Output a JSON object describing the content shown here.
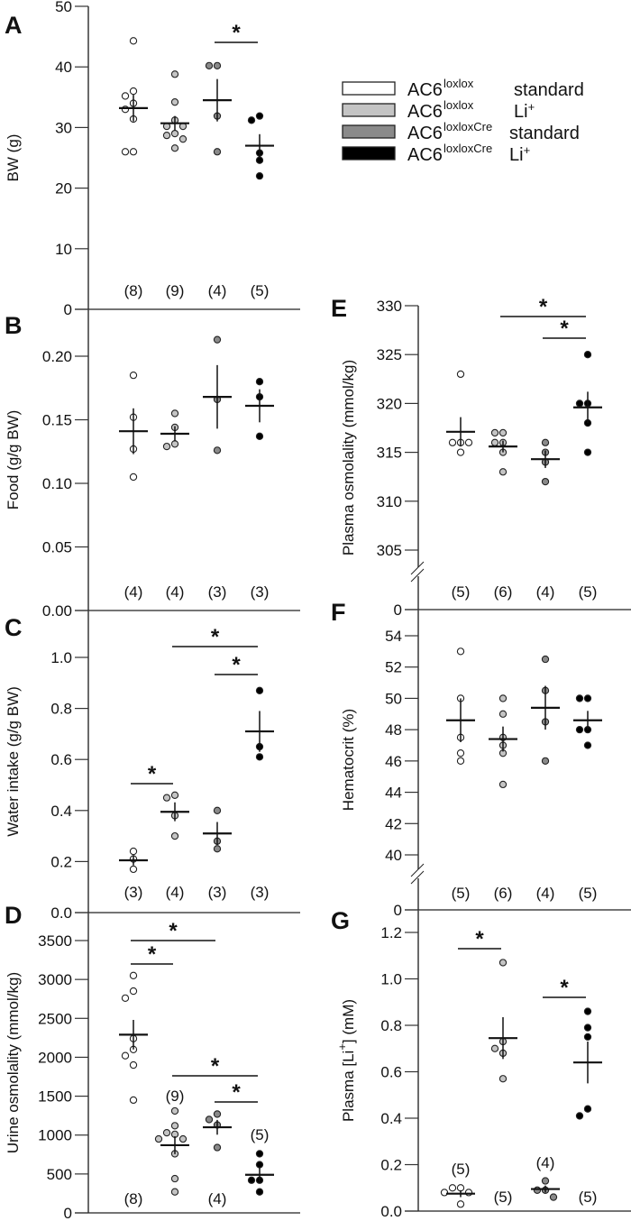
{
  "legend": [
    {
      "genotype": "AC6",
      "sup": "loxlox",
      "treatment": "standard",
      "color": "#ffffff"
    },
    {
      "genotype": "AC6",
      "sup": "loxlox",
      "treatment": "Li",
      "treatment_sup": "+",
      "color": "#c4c4c4"
    },
    {
      "genotype": "AC6",
      "sup": "loxloxCre",
      "treatment": "standard",
      "color": "#8a8a8a"
    },
    {
      "genotype": "AC6",
      "sup": "loxloxCre",
      "treatment": "Li",
      "treatment_sup": "+",
      "color": "#000000"
    }
  ],
  "chart_data": [
    {
      "panel": "A",
      "type": "scatter",
      "ylabel": "BW (g)",
      "yticks": [
        "0",
        "10",
        "20",
        "30",
        "40",
        "50"
      ],
      "ylim": [
        0,
        50
      ],
      "axis_break": false,
      "groups": [
        {
          "n": "(8)",
          "values": [
            44.3,
            36,
            35.2,
            34,
            33,
            31.4,
            26,
            26
          ],
          "mean": 33.2,
          "sem": 2.2
        },
        {
          "n": "(9)",
          "values": [
            38.8,
            34.2,
            31.2,
            30.2,
            30.2,
            29,
            28.7,
            28.1,
            26.6
          ],
          "mean": 30.7,
          "sem": 1.2
        },
        {
          "n": "(4)",
          "values": [
            40.2,
            40.2,
            31.9,
            26
          ],
          "mean": 34.5,
          "sem": 3.5
        },
        {
          "n": "(5)",
          "values": [
            31.9,
            31.2,
            25.8,
            24.6,
            22
          ],
          "mean": 27,
          "sem": 1.9
        }
      ],
      "significance": [
        {
          "from": 3,
          "to": 4,
          "label": "*"
        }
      ]
    },
    {
      "panel": "B",
      "type": "scatter",
      "ylabel": "Food (g/g BW)",
      "yticks": [
        "0.00",
        "0.05",
        "0.10",
        "0.15",
        "0.20"
      ],
      "ylim": [
        0,
        0.22
      ],
      "axis_break": false,
      "groups": [
        {
          "n": "(4)",
          "values": [
            0.185,
            0.152,
            0.127,
            0.105
          ],
          "mean": 0.141,
          "sem": 0.018
        },
        {
          "n": "(4)",
          "values": [
            0.155,
            0.144,
            0.131,
            0.129
          ],
          "mean": 0.139,
          "sem": 0.006
        },
        {
          "n": "(3)",
          "values": [
            0.213,
            0.166,
            0.126
          ],
          "mean": 0.168,
          "sem": 0.025
        },
        {
          "n": "(3)",
          "values": [
            0.18,
            0.168,
            0.137
          ],
          "mean": 0.161,
          "sem": 0.013
        }
      ],
      "significance": []
    },
    {
      "panel": "C",
      "type": "scatter",
      "ylabel": "Water intake (g/g BW)",
      "yticks": [
        "0.0",
        "0.2",
        "0.4",
        "0.6",
        "0.8",
        "1.0"
      ],
      "ylim": [
        0,
        1.1
      ],
      "axis_break": false,
      "groups": [
        {
          "n": "(3)",
          "values": [
            0.24,
            0.21,
            0.17
          ],
          "mean": 0.205,
          "sem": 0.02
        },
        {
          "n": "(4)",
          "values": [
            0.46,
            0.45,
            0.38,
            0.3
          ],
          "mean": 0.395,
          "sem": 0.037
        },
        {
          "n": "(3)",
          "values": [
            0.4,
            0.28,
            0.25
          ],
          "mean": 0.31,
          "sem": 0.045
        },
        {
          "n": "(3)",
          "values": [
            0.87,
            0.65,
            0.61
          ],
          "mean": 0.71,
          "sem": 0.08
        }
      ],
      "significance": [
        {
          "from": 1,
          "to": 2,
          "label": "*"
        },
        {
          "from": 2,
          "to": 4,
          "label": "*"
        },
        {
          "from": 3,
          "to": 4,
          "label": "*"
        }
      ]
    },
    {
      "panel": "D",
      "type": "scatter",
      "ylabel": "Urine osmolality (mmol/kg)",
      "yticks": [
        "0",
        "500",
        "1000",
        "1500",
        "2000",
        "2500",
        "3000",
        "3500"
      ],
      "ylim": [
        0,
        3700
      ],
      "axis_break": false,
      "groups": [
        {
          "n": "(8)",
          "values": [
            3050,
            2850,
            2760,
            2240,
            2100,
            2020,
            1900,
            1450
          ],
          "mean": 2290,
          "sem": 190
        },
        {
          "n": "(9)",
          "values": [
            1310,
            1120,
            1030,
            1010,
            950,
            950,
            760,
            440,
            270
          ],
          "mean": 870,
          "sem": 115
        },
        {
          "n": "(4)",
          "values": [
            1270,
            1200,
            1130,
            840
          ],
          "mean": 1100,
          "sem": 95
        },
        {
          "n": "(5)",
          "values": [
            760,
            620,
            420,
            420,
            270
          ],
          "mean": 490,
          "sem": 90
        }
      ],
      "significance": [
        {
          "from": 1,
          "to": 2,
          "label": "*"
        },
        {
          "from": 1,
          "to": 3,
          "label": "*"
        },
        {
          "from": 2,
          "to": 4,
          "label": "*"
        },
        {
          "from": 3,
          "to": 4,
          "label": "*"
        }
      ]
    },
    {
      "panel": "E",
      "type": "scatter",
      "ylabel": "Plasma osmolality (mmol/kg)",
      "yticks": [
        "0",
        "305",
        "310",
        "315",
        "320",
        "325",
        "330"
      ],
      "ylim": [
        305,
        330
      ],
      "axis_break": true,
      "groups": [
        {
          "n": "(5)",
          "values": [
            323,
            316,
            316,
            316,
            315
          ],
          "mean": 317.1,
          "sem": 1.5
        },
        {
          "n": "(6)",
          "values": [
            317,
            317,
            316,
            316,
            315,
            313
          ],
          "mean": 315.6,
          "sem": 0.6
        },
        {
          "n": "(4)",
          "values": [
            316,
            315,
            314,
            312
          ],
          "mean": 314.3,
          "sem": 0.9
        },
        {
          "n": "(5)",
          "values": [
            325,
            320,
            320,
            318,
            315
          ],
          "mean": 319.6,
          "sem": 1.6
        }
      ],
      "significance": [
        {
          "from": 2,
          "to": 4,
          "label": "*"
        },
        {
          "from": 3,
          "to": 4,
          "label": "*"
        }
      ]
    },
    {
      "panel": "F",
      "type": "scatter",
      "ylabel": "Hematocrit (%)",
      "yticks": [
        "0",
        "40",
        "42",
        "44",
        "46",
        "48",
        "50",
        "52",
        "54"
      ],
      "ylim": [
        40,
        55
      ],
      "axis_break": true,
      "groups": [
        {
          "n": "(5)",
          "values": [
            53,
            50,
            47.5,
            46.5,
            46
          ],
          "mean": 48.6,
          "sem": 1.4
        },
        {
          "n": "(6)",
          "values": [
            50,
            49,
            47.5,
            47,
            46.5,
            44.5
          ],
          "mean": 47.4,
          "sem": 0.8
        },
        {
          "n": "(4)",
          "values": [
            52.5,
            50.5,
            48.5,
            46
          ],
          "mean": 49.4,
          "sem": 1.4
        },
        {
          "n": "(5)",
          "values": [
            50,
            50,
            48,
            48,
            47
          ],
          "mean": 48.6,
          "sem": 0.6
        }
      ],
      "significance": []
    },
    {
      "panel": "G",
      "type": "scatter",
      "ylabel_prefix": "Plasma [Li",
      "ylabel_sup": "+",
      "ylabel_suffix": "] (mM)",
      "yticks": [
        "0.0",
        "0.2",
        "0.4",
        "0.6",
        "0.8",
        "1.0",
        "1.2"
      ],
      "ylim": [
        0,
        1.25
      ],
      "axis_break": false,
      "groups": [
        {
          "n": "(5)",
          "values": [
            0.1,
            0.1,
            0.08,
            0.08,
            0.03
          ],
          "mean": 0.075,
          "sem": 0.015
        },
        {
          "n": "(5)",
          "values": [
            1.07,
            0.73,
            0.7,
            0.68,
            0.57
          ],
          "mean": 0.745,
          "sem": 0.09
        },
        {
          "n": "(4)",
          "values": [
            0.13,
            0.09,
            0.09,
            0.06
          ],
          "mean": 0.095,
          "sem": 0.015
        },
        {
          "n": "(5)",
          "values": [
            0.86,
            0.79,
            0.75,
            0.44,
            0.41
          ],
          "mean": 0.64,
          "sem": 0.09
        }
      ],
      "significance": [
        {
          "from": 1,
          "to": 2,
          "label": "*"
        },
        {
          "from": 3,
          "to": 4,
          "label": "*"
        }
      ]
    }
  ]
}
